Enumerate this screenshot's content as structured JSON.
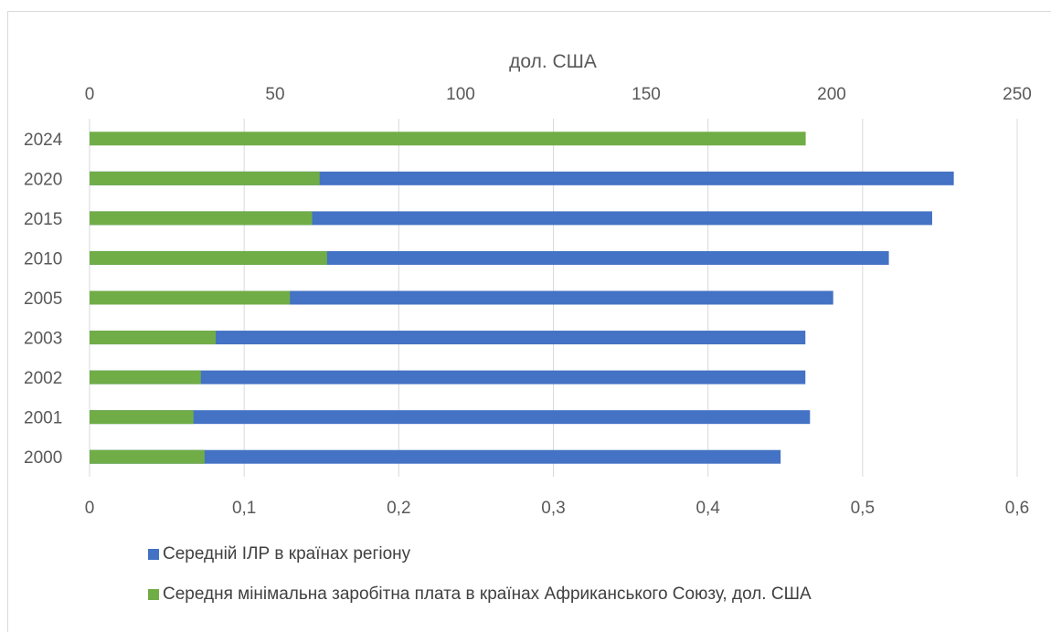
{
  "chart_data": {
    "type": "bar",
    "orientation": "horizontal",
    "stacked": true,
    "categories": [
      "2000",
      "2001",
      "2002",
      "2003",
      "2005",
      "2010",
      "2015",
      "2020",
      "2024"
    ],
    "series": [
      {
        "name": "Середня мінімальна заробітна плата в країнах Африканського Союзу, дол. США",
        "axis": "top",
        "color": "#70ad47",
        "values": [
          31,
          28,
          30,
          34,
          54,
          64,
          60,
          62,
          193
        ]
      },
      {
        "name": "Середній ІЛР в країнах регіону",
        "axis": "bottom",
        "color": "#4472c4",
        "values": [
          0.447,
          0.466,
          0.463,
          0.463,
          0.481,
          0.517,
          0.545,
          0.559,
          null
        ]
      }
    ],
    "top_axis": {
      "title": "дол. США",
      "range": [
        0,
        250
      ],
      "ticks": [
        "0",
        "50",
        "100",
        "150",
        "200",
        "250"
      ]
    },
    "bottom_axis": {
      "title": "",
      "range": [
        0,
        0.6
      ],
      "ticks": [
        "0",
        "0,1",
        "0,2",
        "0,3",
        "0,4",
        "0,5",
        "0,6"
      ]
    },
    "grid": true,
    "legend_position": "bottom"
  }
}
